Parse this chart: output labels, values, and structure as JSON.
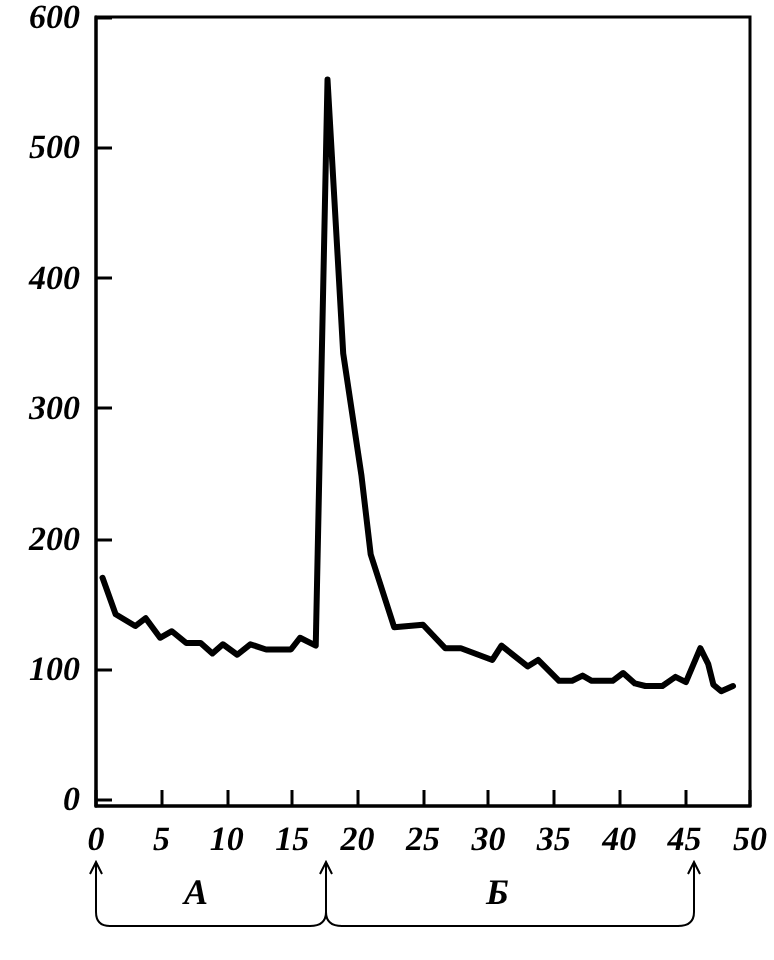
{
  "chart_data": {
    "type": "line",
    "x": [
      0.5,
      1.5,
      3,
      3.8,
      4.9,
      5.8,
      6.9,
      8,
      8.9,
      9.7,
      10.8,
      11.8,
      13,
      14.9,
      15.6,
      16.8,
      17.7,
      18.9,
      20.3,
      21,
      22.8,
      25,
      26.7,
      27.9,
      30.3,
      31,
      33,
      33.8,
      35.4,
      36.4,
      37.2,
      37.9,
      39.5,
      40.3,
      41.2,
      42,
      43.3,
      44.3,
      45.1,
      46.2,
      46.8,
      47.2,
      47.8,
      48.7
    ],
    "series": [
      {
        "color": "#000000",
        "values": [
          170,
          142,
          133,
          139,
          124,
          129,
          120,
          120,
          112,
          119,
          111,
          119,
          115,
          115,
          124,
          118,
          552,
          342,
          248,
          188,
          132,
          134,
          116,
          116,
          107,
          118,
          102,
          107,
          91,
          91,
          95,
          91,
          91,
          97,
          89,
          87,
          87,
          94,
          90,
          116,
          104,
          88,
          83,
          87
        ]
      }
    ],
    "xlim": [
      0,
      50
    ],
    "xticks": [
      0,
      5,
      10,
      15,
      20,
      25,
      30,
      35,
      40,
      45,
      50
    ],
    "ylim": [
      -5,
      600
    ],
    "yticks": [
      0,
      100,
      200,
      300,
      400,
      500,
      600
    ],
    "marker": "none",
    "line_style": "solid",
    "annotations": [
      "А",
      "Б"
    ]
  }
}
